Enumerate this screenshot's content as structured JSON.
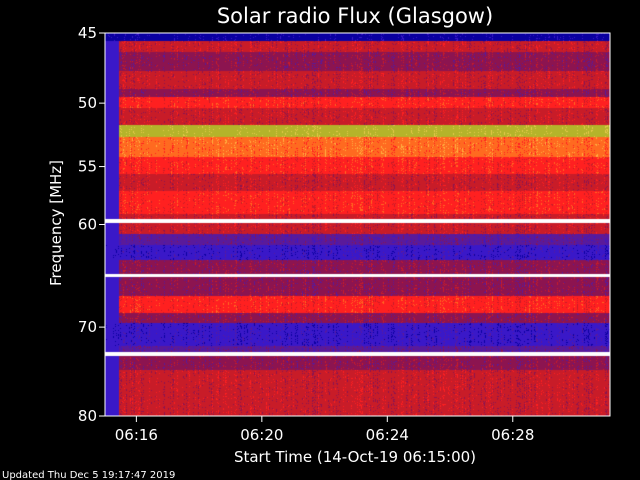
{
  "chart_data": {
    "type": "heatmap",
    "title": "Solar radio Flux (Glasgow)",
    "xlabel": "Start Time (14-Oct-19 06:15:00)",
    "ylabel": "Frequency [MHz]",
    "x_range_minutes": [
      0,
      16.1
    ],
    "ylim": [
      45,
      80
    ],
    "y_scale": "log",
    "y_reversed": true,
    "x_ticks": [
      {
        "label": "06:16",
        "minute": 1
      },
      {
        "label": "06:20",
        "minute": 5
      },
      {
        "label": "06:24",
        "minute": 9
      },
      {
        "label": "06:28",
        "minute": 13
      }
    ],
    "y_ticks": [
      {
        "label": "45",
        "value": 45
      },
      {
        "label": "50",
        "value": 50
      },
      {
        "label": "55",
        "value": 55
      },
      {
        "label": "60",
        "value": 60
      },
      {
        "label": "70",
        "value": 70
      },
      {
        "label": "80",
        "value": 80
      }
    ],
    "grid": false,
    "colormap": [
      "#0a00a0",
      "#3a18c8",
      "#5a1a9a",
      "#8c1450",
      "#c81c28",
      "#ff2020",
      "#ff6a20",
      "#ffb040",
      "#e6c84a",
      "#b4b42a",
      "#ffffff"
    ],
    "footer": "Updated Thu Dec  5 19:17:47 2019"
  }
}
